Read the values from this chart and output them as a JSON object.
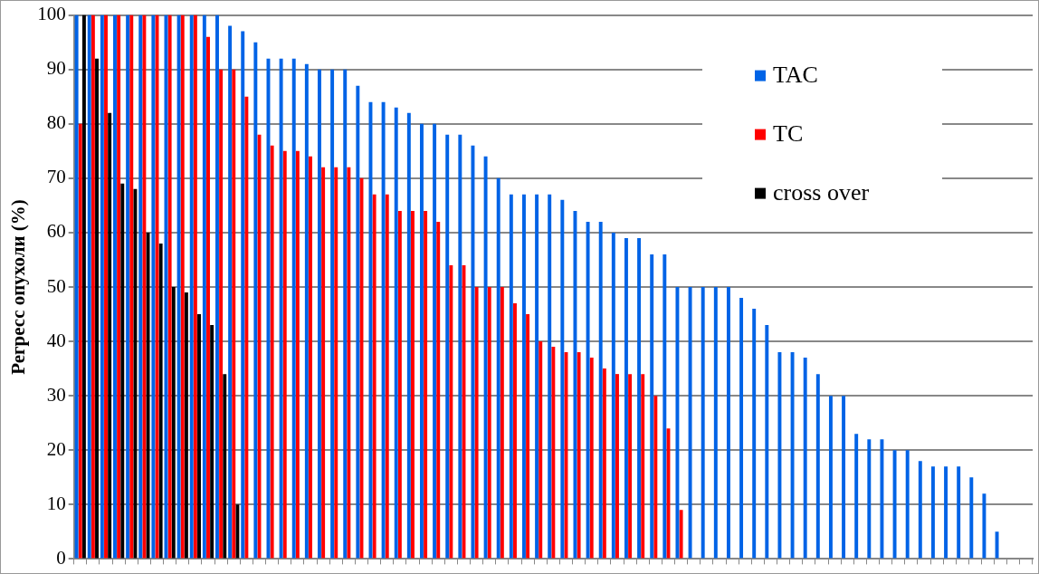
{
  "chart_data": {
    "type": "bar",
    "ylabel": "Регресс опухоли (%)",
    "categories": [
      null,
      null,
      null,
      null,
      null,
      null,
      null,
      null,
      null,
      null,
      null,
      null,
      null,
      null,
      null,
      null,
      null,
      null,
      null,
      null,
      null,
      null,
      null,
      null,
      null,
      null,
      null,
      null,
      null,
      null,
      null,
      null,
      null,
      null,
      null,
      null,
      null,
      null,
      null,
      null,
      null,
      null,
      null,
      null,
      null,
      null,
      null,
      null,
      null,
      null,
      null,
      null,
      null,
      null,
      null,
      null,
      null,
      null,
      null,
      null,
      null,
      null,
      null,
      null,
      null,
      null,
      null,
      null,
      null,
      null,
      null,
      null,
      null,
      null,
      null
    ],
    "series": [
      {
        "name": "TAC",
        "color": "#0063e6",
        "values": [
          100,
          100,
          100,
          100,
          100,
          100,
          100,
          100,
          100,
          100,
          100,
          100,
          98,
          97,
          95,
          92,
          92,
          92,
          91,
          90,
          90,
          90,
          87,
          84,
          84,
          83,
          82,
          80,
          80,
          78,
          78,
          76,
          74,
          70,
          67,
          67,
          67,
          67,
          66,
          64,
          62,
          62,
          60,
          59,
          59,
          56,
          56,
          50,
          50,
          50,
          50,
          50,
          48,
          46,
          43,
          38,
          38,
          37,
          34,
          30,
          30,
          23,
          22,
          22,
          20,
          20,
          18,
          17,
          17,
          17,
          15,
          12,
          5,
          0,
          0
        ]
      },
      {
        "name": "TC",
        "color": "#ff0000",
        "values": [
          80,
          100,
          100,
          100,
          100,
          100,
          100,
          100,
          100,
          100,
          96,
          90,
          90,
          85,
          78,
          76,
          75,
          75,
          74,
          72,
          72,
          72,
          70,
          67,
          67,
          64,
          64,
          64,
          62,
          54,
          54,
          50,
          50,
          50,
          47,
          45,
          40,
          39,
          38,
          38,
          37,
          35,
          34,
          34,
          34,
          30,
          24,
          9,
          null,
          null,
          null,
          null,
          null,
          null,
          null,
          null,
          null,
          null,
          null,
          null,
          null,
          null,
          null,
          null,
          null,
          null,
          null,
          null,
          null,
          null,
          null,
          null,
          null,
          null,
          null
        ]
      },
      {
        "name": "cross over",
        "color": "#000000",
        "values": [
          100,
          92,
          82,
          69,
          68,
          60,
          58,
          50,
          49,
          45,
          43,
          34,
          10,
          null,
          null,
          null,
          null,
          null,
          null,
          null,
          null,
          null,
          null,
          null,
          null,
          null,
          null,
          null,
          null,
          null,
          null,
          null,
          null,
          null,
          null,
          null,
          null,
          null,
          null,
          null,
          null,
          null,
          null,
          null,
          null,
          null,
          null,
          null,
          null,
          null,
          null,
          null,
          null,
          null,
          null,
          null,
          null,
          null,
          null,
          null,
          null,
          null,
          null,
          null,
          null,
          null,
          null,
          null,
          null,
          null,
          null,
          null,
          null,
          null,
          null
        ]
      }
    ],
    "ylim": [
      0,
      100
    ],
    "yticks": [
      0,
      10,
      20,
      30,
      40,
      50,
      60,
      70,
      80,
      90,
      100
    ],
    "grid": "y",
    "legend": "top right",
    "tick_labels": "y"
  }
}
